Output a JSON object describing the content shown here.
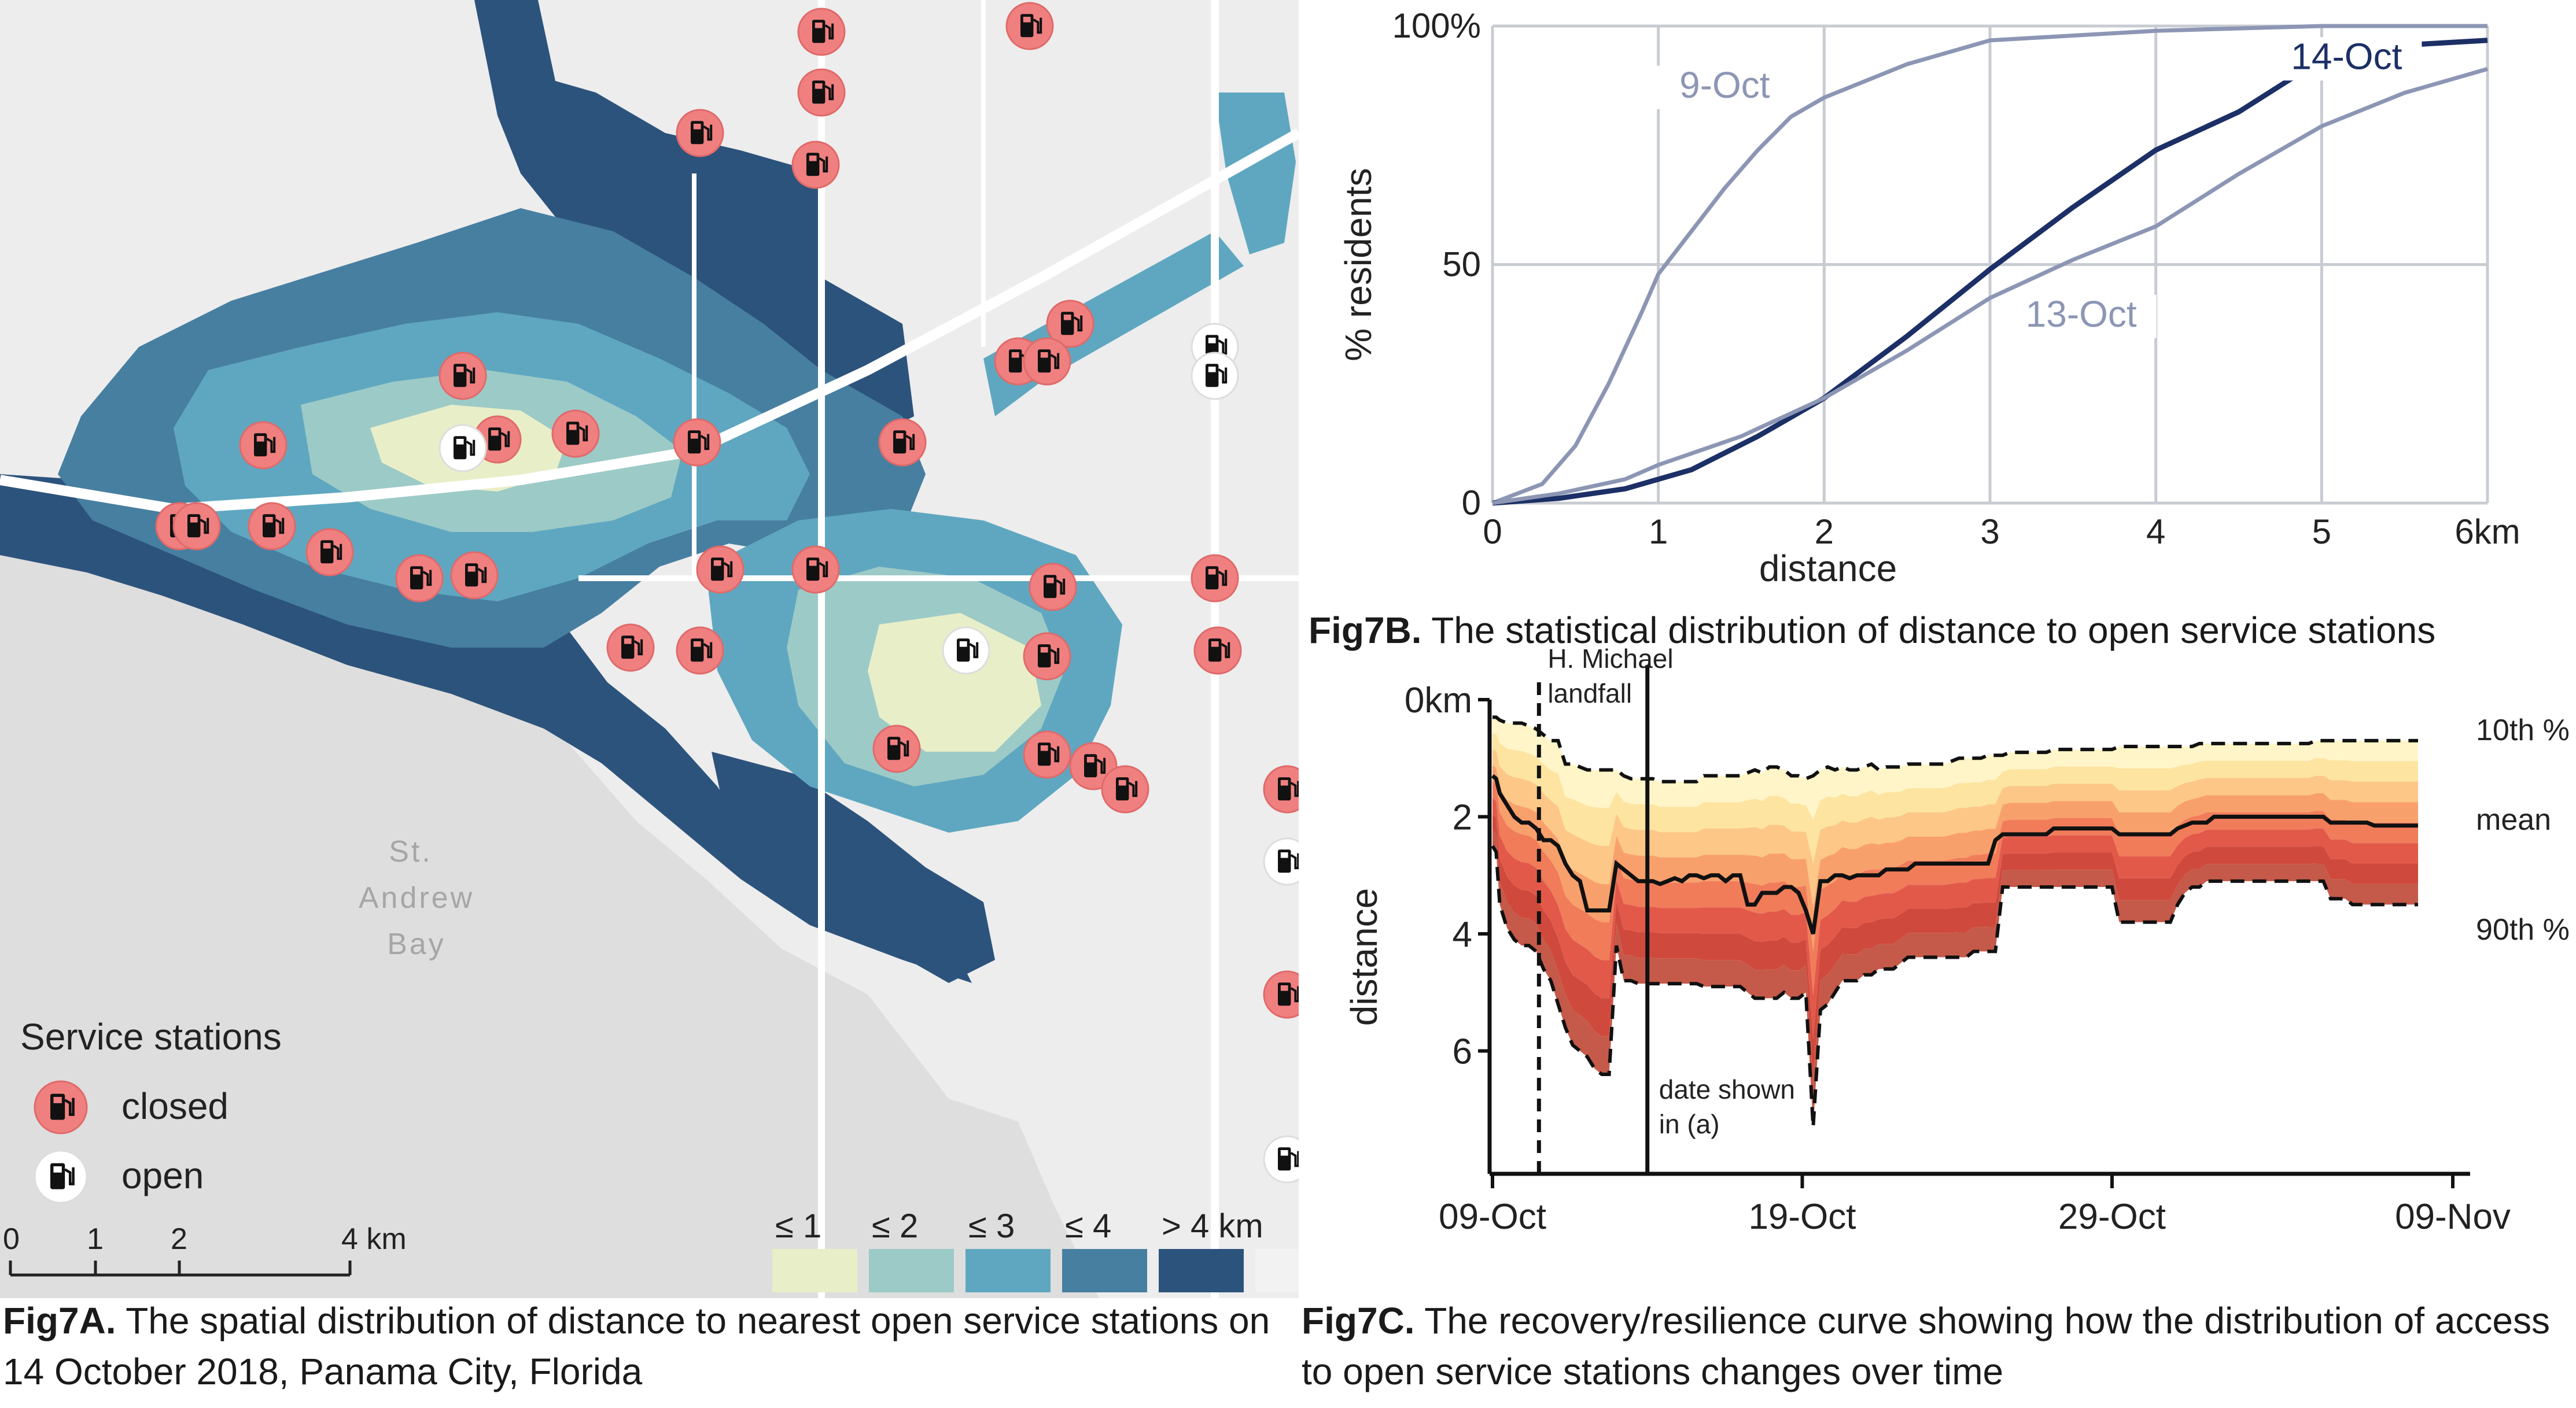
{
  "panel_a": {
    "caption_bold": "Fig7A.",
    "caption_text": "The spatial distribution of distance to nearest open service stations on 14 October 2018, Panama City, Florida",
    "water_label": [
      "St.",
      "Andrew",
      "Bay"
    ],
    "legend_title": "Service stations",
    "legend_items": [
      {
        "label": "closed",
        "color": "#f08080"
      },
      {
        "label": "open",
        "color": "#ffffff"
      }
    ],
    "scale_labels": [
      "0",
      "1",
      "2",
      "4 km"
    ],
    "color_legend": [
      {
        "label": "≤ 1",
        "color": "#e8efc8"
      },
      {
        "label": "≤ 2",
        "color": "#9ccac7"
      },
      {
        "label": "≤ 3",
        "color": "#5fa7c0"
      },
      {
        "label": "≤ 4",
        "color": "#477fa0"
      },
      {
        "label": "> 4 km",
        "color": "#2c537c"
      },
      {
        "label": "",
        "color": "#f2f2f2"
      }
    ],
    "icon": "fuel-pump-icon"
  },
  "chart_data": [
    {
      "type": "line",
      "title": "Fig7B. The statistical distribution of distance to open service stations",
      "xlabel": "distance",
      "ylabel": "% residents",
      "xlim": [
        0,
        6
      ],
      "ylim": [
        0,
        100
      ],
      "x_ticks": [
        "0",
        "1",
        "2",
        "3",
        "4",
        "5",
        "6km"
      ],
      "y_ticks": [
        "0",
        "50",
        "100%"
      ],
      "grid": true,
      "series": [
        {
          "name": "9-Oct",
          "color": "#8c96b4",
          "x": [
            0,
            0.3,
            0.5,
            0.7,
            0.9,
            1.0,
            1.2,
            1.4,
            1.6,
            1.8,
            2.0,
            2.5,
            3.0,
            4.0,
            5.0,
            6.0
          ],
          "y": [
            0,
            4,
            12,
            25,
            40,
            48,
            57,
            66,
            74,
            81,
            85,
            92,
            97,
            99,
            100,
            100
          ]
        },
        {
          "name": "14-Oct",
          "color": "#1c2f66",
          "x": [
            0,
            0.4,
            0.8,
            1.2,
            1.6,
            2.0,
            2.5,
            3.0,
            3.5,
            4.0,
            4.5,
            5.0,
            5.5,
            6.0
          ],
          "y": [
            0,
            1,
            3,
            7,
            14,
            22,
            35,
            49,
            62,
            74,
            82,
            93,
            96,
            97
          ]
        },
        {
          "name": "13-Oct",
          "color": "#8c96b4",
          "x": [
            0,
            0.4,
            0.8,
            1.0,
            1.5,
            2.0,
            2.5,
            3.0,
            3.5,
            4.0,
            4.5,
            5.0,
            5.5,
            6.0
          ],
          "y": [
            0,
            2,
            5,
            8,
            14,
            22,
            32,
            43,
            51,
            58,
            69,
            79,
            86,
            91
          ]
        }
      ]
    },
    {
      "type": "area",
      "title": "Fig7C. The recovery/resilience curve showing how the distribution of access to open service stations changes over time",
      "xlabel": "",
      "ylabel": "distance",
      "x_ticks": [
        "09-Oct",
        "19-Oct",
        "29-Oct",
        "09-Nov"
      ],
      "y_ticks": [
        "0km",
        "2",
        "4",
        "6"
      ],
      "ylim": [
        0,
        8
      ],
      "y_inverted": true,
      "annotations": {
        "landfall": [
          "H. Michael",
          "landfall"
        ],
        "date_shown": [
          "date shown",
          "in (a)"
        ],
        "p10_label": "10th %",
        "mean_label": "mean",
        "p90_label": "90th %"
      },
      "x_days": [
        0,
        0.5,
        1,
        2,
        3,
        4,
        5,
        6,
        7,
        8,
        9,
        10,
        11,
        12,
        13,
        14,
        15,
        16,
        17,
        18,
        19,
        20,
        21,
        22,
        23,
        24,
        25,
        26,
        27,
        28,
        29,
        30,
        31,
        32,
        33,
        34,
        35,
        36,
        37,
        38,
        39,
        40,
        41,
        42,
        43,
        44,
        45,
        46,
        47,
        48,
        49,
        50,
        51,
        52,
        53,
        54,
        55,
        56,
        57,
        58,
        59,
        60,
        61,
        62,
        63,
        64,
        65,
        66,
        67,
        68,
        69,
        70,
        71,
        72,
        73,
        74,
        75,
        76,
        77,
        78,
        79,
        80,
        81,
        82,
        83,
        84,
        85,
        86,
        87,
        88,
        89,
        90,
        91,
        92,
        93,
        94,
        95,
        96,
        97,
        98,
        99,
        100,
        101,
        102,
        103,
        104,
        105,
        106,
        107,
        108,
        109,
        110,
        111,
        112,
        113,
        114,
        115,
        116,
        117,
        118,
        119,
        120,
        121,
        122,
        123,
        124,
        125,
        126,
        127
      ],
      "series": [
        {
          "name": "10th %",
          "style": "dashed",
          "values": [
            0.3,
            0.3,
            0.35,
            0.4,
            0.4,
            0.4,
            0.45,
            0.5,
            0.6,
            0.7,
            0.7,
            1.1,
            1.1,
            1.15,
            1.2,
            1.2,
            1.2,
            1.2,
            1.2,
            1.3,
            1.35,
            1.35,
            1.35,
            1.35,
            1.4,
            1.4,
            1.4,
            1.4,
            1.4,
            1.4,
            1.3,
            1.3,
            1.3,
            1.3,
            1.3,
            1.3,
            1.25,
            1.2,
            1.25,
            1.15,
            1.15,
            1.2,
            1.3,
            1.3,
            1.35,
            1.3,
            1.2,
            1.15,
            1.2,
            1.15,
            1.2,
            1.2,
            1.15,
            1.1,
            1.2,
            1.15,
            1.15,
            1.15,
            1.1,
            1.1,
            1.1,
            1.1,
            1.1,
            1.1,
            1.05,
            1.0,
            1.0,
            1.0,
            1.0,
            0.95,
            0.95,
            0.95,
            0.9,
            0.9,
            0.9,
            0.9,
            0.9,
            0.9,
            0.85,
            0.85,
            0.85,
            0.85,
            0.85,
            0.85,
            0.85,
            0.85,
            0.85,
            0.8,
            0.8,
            0.8,
            0.8,
            0.8,
            0.8,
            0.8,
            0.8,
            0.8,
            0.8,
            0.8,
            0.75,
            0.75,
            0.75,
            0.75,
            0.75,
            0.75,
            0.75,
            0.75,
            0.75,
            0.75,
            0.75,
            0.75,
            0.75,
            0.75,
            0.75,
            0.75,
            0.7,
            0.7,
            0.7,
            0.7,
            0.7,
            0.7,
            0.7,
            0.7,
            0.7,
            0.7,
            0.7,
            0.7,
            0.7,
            0.7,
            0.7
          ]
        },
        {
          "name": "mean",
          "style": "solid",
          "values": [
            1.3,
            1.35,
            1.6,
            1.8,
            2.0,
            2.1,
            2.1,
            2.2,
            2.4,
            2.4,
            2.5,
            2.8,
            3.0,
            3.1,
            3.6,
            3.6,
            3.6,
            3.6,
            2.8,
            2.9,
            3.0,
            3.1,
            3.1,
            3.1,
            3.15,
            3.1,
            3.05,
            3.1,
            3.0,
            3.0,
            3.05,
            3.0,
            3.0,
            3.1,
            3.0,
            3.0,
            3.5,
            3.5,
            3.3,
            3.3,
            3.3,
            3.2,
            3.2,
            3.3,
            3.6,
            4.0,
            3.1,
            3.1,
            3.0,
            3.0,
            3.05,
            3.0,
            3.0,
            3.0,
            3.0,
            2.9,
            2.9,
            2.9,
            2.9,
            2.8,
            2.8,
            2.8,
            2.8,
            2.8,
            2.8,
            2.8,
            2.8,
            2.8,
            2.8,
            2.8,
            2.4,
            2.3,
            2.3,
            2.3,
            2.3,
            2.3,
            2.3,
            2.3,
            2.2,
            2.2,
            2.2,
            2.2,
            2.2,
            2.2,
            2.2,
            2.2,
            2.2,
            2.3,
            2.3,
            2.3,
            2.3,
            2.3,
            2.3,
            2.3,
            2.3,
            2.2,
            2.15,
            2.1,
            2.1,
            2.1,
            2.0,
            2.0,
            2.0,
            2.0,
            2.0,
            2.0,
            2.0,
            2.0,
            2.0,
            2.0,
            2.0,
            2.0,
            2.0,
            2.0,
            2.0,
            2.0,
            2.1,
            2.1,
            2.1,
            2.1,
            2.1,
            2.1,
            2.15,
            2.15,
            2.15,
            2.15,
            2.15,
            2.15,
            2.15
          ]
        },
        {
          "name": "90th %",
          "style": "dashed",
          "values": [
            2.5,
            2.6,
            3.5,
            3.9,
            4.1,
            4.2,
            4.2,
            4.3,
            4.6,
            4.8,
            5.2,
            5.6,
            5.9,
            6.0,
            6.1,
            6.3,
            6.4,
            6.4,
            4.2,
            4.8,
            4.8,
            4.85,
            4.85,
            4.85,
            4.85,
            4.85,
            4.85,
            4.85,
            4.85,
            4.85,
            4.9,
            4.9,
            4.9,
            4.9,
            4.9,
            4.9,
            5.0,
            5.1,
            5.1,
            5.1,
            5.1,
            5.0,
            5.1,
            5.1,
            5.0,
            7.3,
            5.3,
            5.2,
            5.0,
            4.8,
            4.8,
            4.8,
            4.7,
            4.7,
            4.6,
            4.6,
            4.6,
            4.5,
            4.4,
            4.4,
            4.4,
            4.4,
            4.4,
            4.4,
            4.4,
            4.4,
            4.4,
            4.3,
            4.3,
            4.3,
            4.3,
            3.2,
            3.2,
            3.2,
            3.2,
            3.2,
            3.2,
            3.2,
            3.2,
            3.2,
            3.2,
            3.2,
            3.2,
            3.2,
            3.2,
            3.2,
            3.2,
            3.8,
            3.8,
            3.8,
            3.8,
            3.8,
            3.8,
            3.8,
            3.8,
            3.5,
            3.3,
            3.2,
            3.2,
            3.1,
            3.1,
            3.1,
            3.1,
            3.1,
            3.1,
            3.1,
            3.1,
            3.1,
            3.1,
            3.1,
            3.1,
            3.1,
            3.1,
            3.1,
            3.1,
            3.1,
            3.4,
            3.4,
            3.4,
            3.5,
            3.5,
            3.5,
            3.5,
            3.5,
            3.5,
            3.5,
            3.5,
            3.5,
            3.5
          ]
        }
      ],
      "band_colors": [
        "#fff5c8",
        "#fde4a0",
        "#fcc787",
        "#f8a06c",
        "#f17c5a",
        "#e2594a",
        "#cf4a3c",
        "#c55a4a"
      ],
      "landfall_day": 0.15,
      "date_shown_day": 0.5,
      "x_tick_days": [
        0,
        10,
        20,
        31
      ]
    }
  ],
  "panel_b_caption_bold": "Fig7B.",
  "panel_b_caption_text": "The statistical distribution of distance to open service stations",
  "panel_c_caption_bold": "Fig7C.",
  "panel_c_caption_text": "The recovery/resilience curve showing how the distribution of access to open service stations changes over time"
}
